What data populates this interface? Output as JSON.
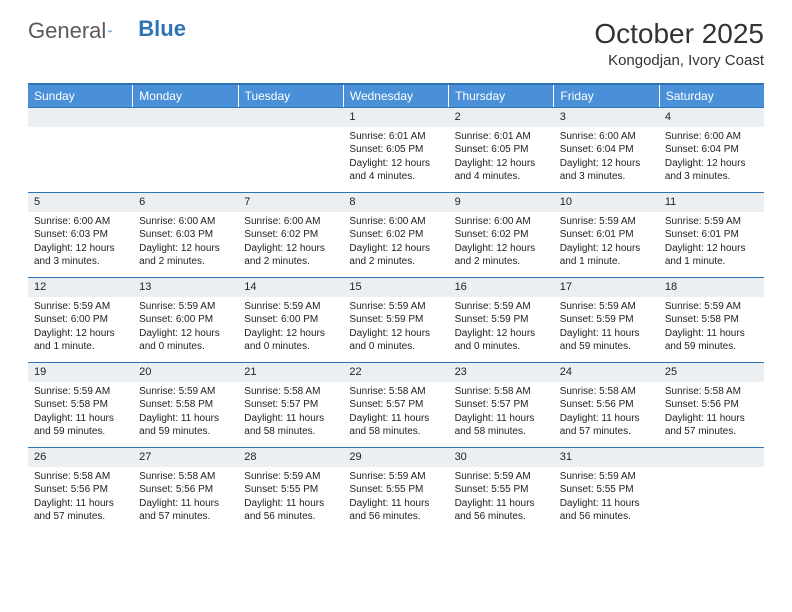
{
  "logo": {
    "word1": "General",
    "word2": "Blue"
  },
  "title": "October 2025",
  "location": "Kongodjan, Ivory Coast",
  "colors": {
    "header_bg": "#4a90d9",
    "header_text": "#ffffff",
    "border": "#2e74b5",
    "daynum_bg": "#eceff1",
    "text": "#222222",
    "logo_gray": "#5a5a5a",
    "logo_blue": "#2e74b5",
    "page_bg": "#ffffff"
  },
  "day_names": [
    "Sunday",
    "Monday",
    "Tuesday",
    "Wednesday",
    "Thursday",
    "Friday",
    "Saturday"
  ],
  "weeks": [
    [
      {
        "n": ""
      },
      {
        "n": ""
      },
      {
        "n": ""
      },
      {
        "n": "1",
        "sr": "6:01 AM",
        "ss": "6:05 PM",
        "dl": "12 hours and 4 minutes."
      },
      {
        "n": "2",
        "sr": "6:01 AM",
        "ss": "6:05 PM",
        "dl": "12 hours and 4 minutes."
      },
      {
        "n": "3",
        "sr": "6:00 AM",
        "ss": "6:04 PM",
        "dl": "12 hours and 3 minutes."
      },
      {
        "n": "4",
        "sr": "6:00 AM",
        "ss": "6:04 PM",
        "dl": "12 hours and 3 minutes."
      }
    ],
    [
      {
        "n": "5",
        "sr": "6:00 AM",
        "ss": "6:03 PM",
        "dl": "12 hours and 3 minutes."
      },
      {
        "n": "6",
        "sr": "6:00 AM",
        "ss": "6:03 PM",
        "dl": "12 hours and 2 minutes."
      },
      {
        "n": "7",
        "sr": "6:00 AM",
        "ss": "6:02 PM",
        "dl": "12 hours and 2 minutes."
      },
      {
        "n": "8",
        "sr": "6:00 AM",
        "ss": "6:02 PM",
        "dl": "12 hours and 2 minutes."
      },
      {
        "n": "9",
        "sr": "6:00 AM",
        "ss": "6:02 PM",
        "dl": "12 hours and 2 minutes."
      },
      {
        "n": "10",
        "sr": "5:59 AM",
        "ss": "6:01 PM",
        "dl": "12 hours and 1 minute."
      },
      {
        "n": "11",
        "sr": "5:59 AM",
        "ss": "6:01 PM",
        "dl": "12 hours and 1 minute."
      }
    ],
    [
      {
        "n": "12",
        "sr": "5:59 AM",
        "ss": "6:00 PM",
        "dl": "12 hours and 1 minute."
      },
      {
        "n": "13",
        "sr": "5:59 AM",
        "ss": "6:00 PM",
        "dl": "12 hours and 0 minutes."
      },
      {
        "n": "14",
        "sr": "5:59 AM",
        "ss": "6:00 PM",
        "dl": "12 hours and 0 minutes."
      },
      {
        "n": "15",
        "sr": "5:59 AM",
        "ss": "5:59 PM",
        "dl": "12 hours and 0 minutes."
      },
      {
        "n": "16",
        "sr": "5:59 AM",
        "ss": "5:59 PM",
        "dl": "12 hours and 0 minutes."
      },
      {
        "n": "17",
        "sr": "5:59 AM",
        "ss": "5:59 PM",
        "dl": "11 hours and 59 minutes."
      },
      {
        "n": "18",
        "sr": "5:59 AM",
        "ss": "5:58 PM",
        "dl": "11 hours and 59 minutes."
      }
    ],
    [
      {
        "n": "19",
        "sr": "5:59 AM",
        "ss": "5:58 PM",
        "dl": "11 hours and 59 minutes."
      },
      {
        "n": "20",
        "sr": "5:59 AM",
        "ss": "5:58 PM",
        "dl": "11 hours and 59 minutes."
      },
      {
        "n": "21",
        "sr": "5:58 AM",
        "ss": "5:57 PM",
        "dl": "11 hours and 58 minutes."
      },
      {
        "n": "22",
        "sr": "5:58 AM",
        "ss": "5:57 PM",
        "dl": "11 hours and 58 minutes."
      },
      {
        "n": "23",
        "sr": "5:58 AM",
        "ss": "5:57 PM",
        "dl": "11 hours and 58 minutes."
      },
      {
        "n": "24",
        "sr": "5:58 AM",
        "ss": "5:56 PM",
        "dl": "11 hours and 57 minutes."
      },
      {
        "n": "25",
        "sr": "5:58 AM",
        "ss": "5:56 PM",
        "dl": "11 hours and 57 minutes."
      }
    ],
    [
      {
        "n": "26",
        "sr": "5:58 AM",
        "ss": "5:56 PM",
        "dl": "11 hours and 57 minutes."
      },
      {
        "n": "27",
        "sr": "5:58 AM",
        "ss": "5:56 PM",
        "dl": "11 hours and 57 minutes."
      },
      {
        "n": "28",
        "sr": "5:59 AM",
        "ss": "5:55 PM",
        "dl": "11 hours and 56 minutes."
      },
      {
        "n": "29",
        "sr": "5:59 AM",
        "ss": "5:55 PM",
        "dl": "11 hours and 56 minutes."
      },
      {
        "n": "30",
        "sr": "5:59 AM",
        "ss": "5:55 PM",
        "dl": "11 hours and 56 minutes."
      },
      {
        "n": "31",
        "sr": "5:59 AM",
        "ss": "5:55 PM",
        "dl": "11 hours and 56 minutes."
      },
      {
        "n": ""
      }
    ]
  ],
  "labels": {
    "sunrise": "Sunrise:",
    "sunset": "Sunset:",
    "daylight": "Daylight:"
  }
}
